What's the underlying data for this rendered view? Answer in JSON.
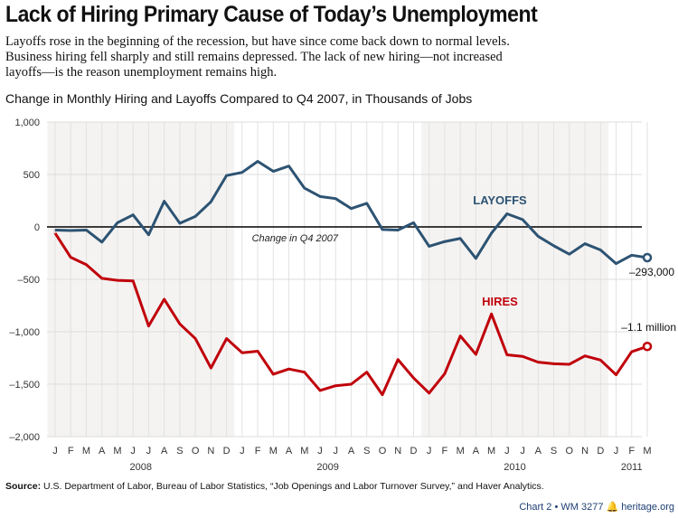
{
  "title": "Lack of Hiring Primary Cause of Today’s Unemployment",
  "subtitle": "Layoffs rose in the beginning of the recession, but have since come back down to normal levels. Business hiring fell sharply and still remains depressed. The lack of new hiring—not increased layoffs—is the reason unemployment remains high.",
  "source_label": "Source:",
  "source_text": " U.S. Department of Labor, Bureau of Labor Statistics, “Job Openings and Labor Turnover Survey,” and Haver Analytics.",
  "credit": "Chart 2 • WM 3277",
  "credit_site": "heritage.org",
  "chart_data": {
    "type": "line",
    "title": "Change in Monthly Hiring and Layoffs Compared to Q4 2007, in Thousands of Jobs",
    "ylim": [
      -2000,
      1000
    ],
    "yticks": [
      1000,
      500,
      0,
      -500,
      -1000,
      -1500,
      -2000
    ],
    "ytick_labels": [
      "1,000",
      "500",
      "0",
      "–500",
      "–1,000",
      "–1,500",
      "–2,000"
    ],
    "x": [
      "J",
      "F",
      "M",
      "A",
      "M",
      "J",
      "J",
      "A",
      "S",
      "O",
      "N",
      "D",
      "J",
      "F",
      "M",
      "A",
      "M",
      "J",
      "J",
      "A",
      "S",
      "O",
      "N",
      "D",
      "J",
      "F",
      "M",
      "A",
      "M",
      "J",
      "J",
      "A",
      "S",
      "O",
      "N",
      "D",
      "J",
      "F",
      "M"
    ],
    "years": [
      {
        "label": "2008",
        "center_index": 5.5
      },
      {
        "label": "2009",
        "center_index": 17.5
      },
      {
        "label": "2010",
        "center_index": 29.5
      },
      {
        "label": "2011",
        "center_index": 37
      }
    ],
    "shaded_ranges": [
      [
        0,
        11
      ],
      [
        24,
        35
      ]
    ],
    "grid": true,
    "zero_label": "Change in Q4 2007",
    "series": [
      {
        "name": "LAYOFFS",
        "color": "#2d5373",
        "end_label": "–293,000",
        "values": [
          -30,
          -35,
          -30,
          -145,
          40,
          115,
          -75,
          245,
          35,
          100,
          240,
          490,
          520,
          625,
          530,
          580,
          370,
          290,
          270,
          175,
          225,
          -25,
          -30,
          40,
          -185,
          -140,
          -110,
          -300,
          -60,
          125,
          70,
          -90,
          -180,
          -260,
          -160,
          -220,
          -350,
          -270,
          -293
        ]
      },
      {
        "name": "HIRES",
        "color": "#c0000b",
        "end_label": "–1.1 million",
        "values": [
          -60,
          -290,
          -360,
          -490,
          -510,
          -515,
          -945,
          -690,
          -925,
          -1065,
          -1345,
          -1065,
          -1200,
          -1185,
          -1405,
          -1355,
          -1385,
          -1560,
          -1515,
          -1500,
          -1385,
          -1600,
          -1265,
          -1440,
          -1585,
          -1400,
          -1040,
          -1215,
          -830,
          -1220,
          -1235,
          -1290,
          -1305,
          -1310,
          -1230,
          -1270,
          -1410,
          -1190,
          -1140
        ]
      }
    ]
  }
}
